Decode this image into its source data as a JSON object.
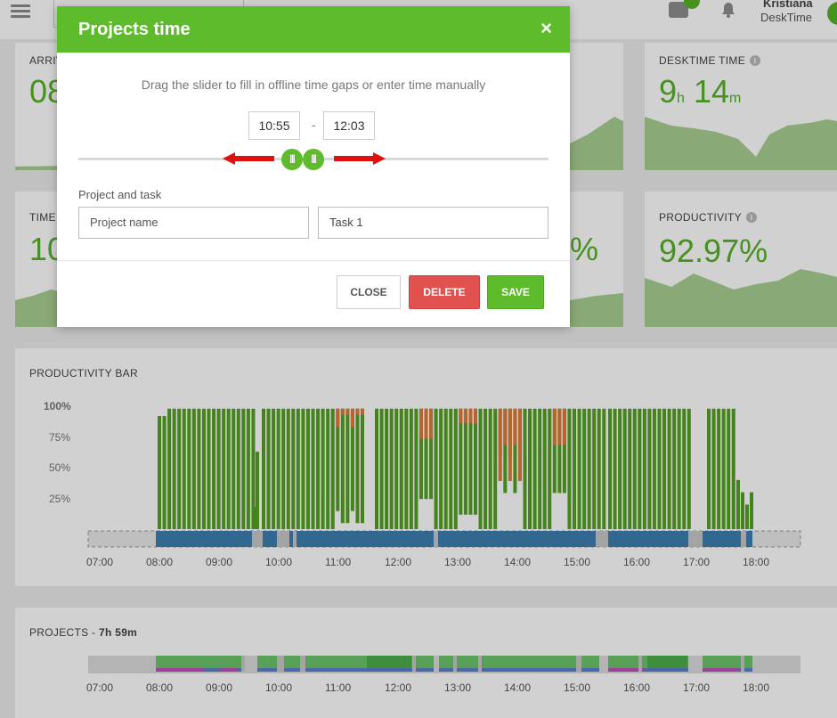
{
  "topbar": {
    "user_name": "Kristiana",
    "org_name": "DeskTime"
  },
  "cards": {
    "arrival": {
      "title": "ARRIV",
      "value": "08"
    },
    "desktime": {
      "title": "DESKTIME TIME",
      "hours": "9",
      "h_unit": "h",
      "minutes": "14",
      "m_unit": "m"
    },
    "time": {
      "title": "TIME",
      "value": "10"
    },
    "middle_value": "%",
    "productivity": {
      "title": "PRODUCTIVITY",
      "value": "92.97%"
    }
  },
  "modal": {
    "title": "Projects time",
    "close_icon": "×",
    "instruction": "Drag the slider to fill in offline time gaps or enter time manually",
    "start_time": "10:55",
    "separator": "-",
    "end_time": "12:03",
    "project_task_label": "Project and task",
    "project_placeholder": "Project name",
    "task_value": "Task 1",
    "buttons": {
      "close": "CLOSE",
      "delete": "DELETE",
      "save": "SAVE"
    }
  },
  "productivity_bar": {
    "title": "PRODUCTIVITY BAR",
    "y_labels": [
      "100%",
      "75%",
      "50%",
      "25%"
    ],
    "x_labels": [
      "07:00",
      "08:00",
      "09:00",
      "10:00",
      "11:00",
      "12:00",
      "13:00",
      "14:00",
      "15:00",
      "16:00",
      "17:00",
      "18:00"
    ],
    "colors": {
      "productive": "#55a024",
      "unproductive": "#e07b39",
      "neutral": "#c8c8c8",
      "timeline": "#3d7fb0"
    }
  },
  "projects": {
    "title": "PROJECTS - ",
    "total": "7h 59m",
    "x_labels": [
      "07:00",
      "08:00",
      "09:00",
      "10:00",
      "11:00",
      "12:00",
      "13:00",
      "14:00",
      "15:00",
      "16:00",
      "17:00",
      "18:00"
    ]
  }
}
